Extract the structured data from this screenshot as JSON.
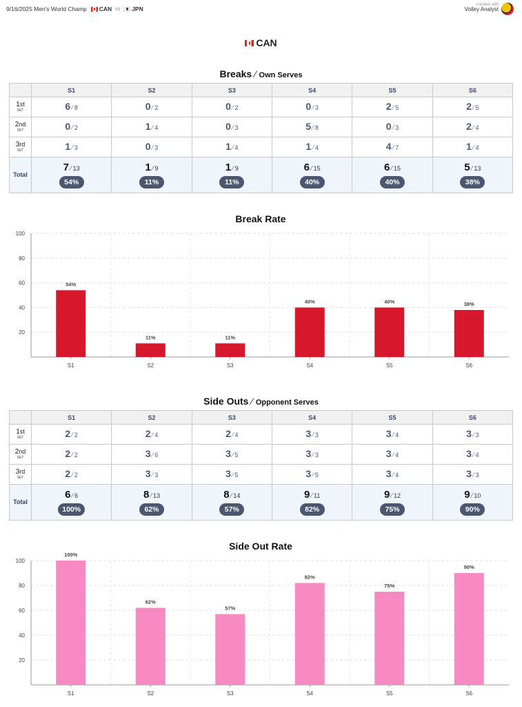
{
  "header": {
    "match_date_event": "9/16/2025 Men's World Champ",
    "home_team": "CAN",
    "vs": "vs",
    "away_team": "JPN",
    "credit_small": "created with",
    "credit_app": "Volley Analyst"
  },
  "team_heading": "CAN",
  "rotations": [
    "S1",
    "S2",
    "S3",
    "S4",
    "S5",
    "S6"
  ],
  "set_labels": [
    {
      "num": "1",
      "suffix": "st",
      "word": "SET"
    },
    {
      "num": "2",
      "suffix": "nd",
      "word": "SET"
    },
    {
      "num": "3",
      "suffix": "rd",
      "word": "SET"
    }
  ],
  "total_label": "Total",
  "breaks": {
    "title": "Breaks",
    "subtitle": "Own Serves",
    "sets": [
      [
        [
          6,
          8
        ],
        [
          0,
          2
        ],
        [
          0,
          2
        ],
        [
          0,
          3
        ],
        [
          2,
          5
        ],
        [
          2,
          5
        ]
      ],
      [
        [
          0,
          2
        ],
        [
          1,
          4
        ],
        [
          0,
          3
        ],
        [
          5,
          8
        ],
        [
          0,
          3
        ],
        [
          2,
          4
        ]
      ],
      [
        [
          1,
          3
        ],
        [
          0,
          3
        ],
        [
          1,
          4
        ],
        [
          1,
          4
        ],
        [
          4,
          7
        ],
        [
          1,
          4
        ]
      ]
    ],
    "totals": [
      [
        7,
        13
      ],
      [
        1,
        9
      ],
      [
        1,
        9
      ],
      [
        6,
        15
      ],
      [
        6,
        15
      ],
      [
        5,
        13
      ]
    ],
    "pct": [
      "54%",
      "11%",
      "11%",
      "40%",
      "40%",
      "38%"
    ]
  },
  "side_outs": {
    "title": "Side Outs",
    "subtitle": "Opponent Serves",
    "sets": [
      [
        [
          2,
          2
        ],
        [
          2,
          4
        ],
        [
          2,
          4
        ],
        [
          3,
          3
        ],
        [
          3,
          4
        ],
        [
          3,
          3
        ]
      ],
      [
        [
          2,
          2
        ],
        [
          3,
          6
        ],
        [
          3,
          5
        ],
        [
          3,
          3
        ],
        [
          3,
          4
        ],
        [
          3,
          4
        ]
      ],
      [
        [
          2,
          2
        ],
        [
          3,
          3
        ],
        [
          3,
          5
        ],
        [
          3,
          5
        ],
        [
          3,
          4
        ],
        [
          3,
          3
        ]
      ]
    ],
    "totals": [
      [
        6,
        6
      ],
      [
        8,
        13
      ],
      [
        8,
        14
      ],
      [
        9,
        11
      ],
      [
        9,
        12
      ],
      [
        9,
        10
      ]
    ],
    "pct": [
      "100%",
      "62%",
      "57%",
      "82%",
      "75%",
      "90%"
    ]
  },
  "chart_data": [
    {
      "type": "bar",
      "title": "Break Rate",
      "categories": [
        "S1",
        "S2",
        "S3",
        "S4",
        "S5",
        "S6"
      ],
      "values": [
        54,
        11,
        11,
        40,
        40,
        38
      ],
      "data_labels": [
        "54%",
        "11%",
        "11%",
        "40%",
        "40%",
        "38%"
      ],
      "ylim": [
        0,
        100
      ],
      "yticks": [
        20,
        40,
        60,
        80,
        100
      ],
      "grid": true,
      "color": "#d7172c"
    },
    {
      "type": "bar",
      "title": "Side Out Rate",
      "categories": [
        "S1",
        "S2",
        "S3",
        "S4",
        "S5",
        "S6"
      ],
      "values": [
        100,
        62,
        57,
        82,
        75,
        90
      ],
      "data_labels": [
        "100%",
        "62%",
        "57%",
        "82%",
        "75%",
        "90%"
      ],
      "ylim": [
        0,
        100
      ],
      "yticks": [
        20,
        40,
        60,
        80,
        100
      ],
      "grid": true,
      "color": "#f78ac2"
    }
  ]
}
